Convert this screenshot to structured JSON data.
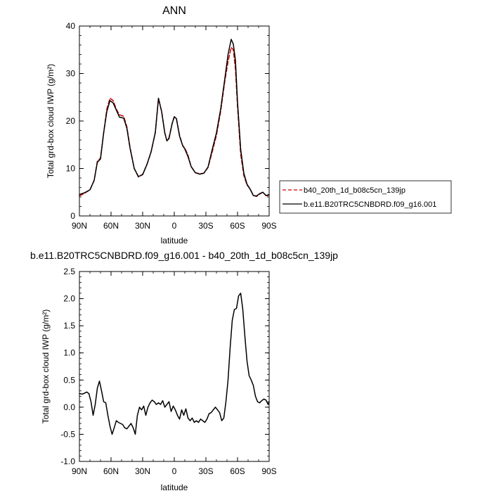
{
  "chart_data": [
    {
      "type": "line",
      "title": "ANN",
      "xlabel": "latitude",
      "ylabel": "Total grd-box cloud IWP (g/m²)",
      "xlim": [
        90,
        -90
      ],
      "ylim": [
        0,
        40
      ],
      "xticks": [
        90,
        60,
        30,
        0,
        -30,
        -60,
        -90
      ],
      "xtick_labels": [
        "90N",
        "60N",
        "30N",
        "0",
        "30S",
        "60S",
        "90S"
      ],
      "yticks": [
        0,
        10,
        20,
        30,
        40
      ],
      "ytick_labels": [
        "0",
        "10",
        "20",
        "30",
        "40"
      ],
      "legend_position": "right",
      "series": [
        {
          "name": "b40_20th_1d_b08c5cn_139jp",
          "color": "#cc0000",
          "dash": "dashed",
          "x": [
            90,
            85,
            80,
            76,
            73,
            70,
            67,
            64,
            61,
            58,
            55,
            52,
            48,
            45,
            42,
            38,
            34,
            30,
            26,
            22,
            18,
            15,
            12,
            9,
            7,
            5,
            2,
            0,
            -2,
            -5,
            -8,
            -10,
            -13,
            -16,
            -20,
            -24,
            -28,
            -32,
            -36,
            -40,
            -44,
            -48,
            -51,
            -54,
            -56,
            -58,
            -60,
            -63,
            -66,
            -69,
            -72,
            -75,
            -78,
            -81,
            -84,
            -87,
            -90
          ],
          "y": [
            4.2,
            4.8,
            5.5,
            7.5,
            11.5,
            12.2,
            17.5,
            22.5,
            24.8,
            24.3,
            22.5,
            21.3,
            21.0,
            18.8,
            14.5,
            10.0,
            8.2,
            8.8,
            10.8,
            13.5,
            17.5,
            24.7,
            22.0,
            17.5,
            15.8,
            16.5,
            19.5,
            20.8,
            20.6,
            17.0,
            14.8,
            14.3,
            12.8,
            10.4,
            9.1,
            8.9,
            9.0,
            10.2,
            13.5,
            17.0,
            22.0,
            28.5,
            32.5,
            35.5,
            35.0,
            31.0,
            23.0,
            13.0,
            8.5,
            6.5,
            5.7,
            4.3,
            4.1,
            4.6,
            5.0,
            4.3,
            4.2
          ]
        },
        {
          "name": "b.e11.B20TRC5CNBDRD.f09_g16.001",
          "color": "#000000",
          "dash": "solid",
          "x": [
            90,
            85,
            80,
            76,
            73,
            70,
            67,
            64,
            61,
            58,
            55,
            52,
            48,
            45,
            42,
            38,
            34,
            30,
            26,
            22,
            18,
            15,
            12,
            9,
            7,
            5,
            2,
            0,
            -2,
            -5,
            -8,
            -10,
            -13,
            -16,
            -20,
            -24,
            -28,
            -32,
            -36,
            -40,
            -44,
            -48,
            -51,
            -54,
            -56,
            -58,
            -60,
            -63,
            -66,
            -69,
            -72,
            -75,
            -78,
            -81,
            -84,
            -87,
            -90
          ],
          "y": [
            4.5,
            4.9,
            5.5,
            7.5,
            11.3,
            12.0,
            17.5,
            22.0,
            24.3,
            23.8,
            22.3,
            20.8,
            20.6,
            18.5,
            14.3,
            10.0,
            8.3,
            8.7,
            10.8,
            13.5,
            17.6,
            24.8,
            22.0,
            17.5,
            15.8,
            16.3,
            19.5,
            20.9,
            20.5,
            16.8,
            14.8,
            14.1,
            12.5,
            10.4,
            9.1,
            8.8,
            9.0,
            10.3,
            14.0,
            17.5,
            22.5,
            29.0,
            34.0,
            37.2,
            36.2,
            32.8,
            24.0,
            14.0,
            9.0,
            6.7,
            5.6,
            4.3,
            4.2,
            4.7,
            5.0,
            4.3,
            4.5
          ]
        }
      ]
    },
    {
      "type": "line",
      "title": "b.e11.B20TRC5CNBDRD.f09_g16.001 - b40_20th_1d_b08c5cn_139jp",
      "xlabel": "latitude",
      "ylabel": "Total grd-box cloud IWP (g/m²)",
      "xlim": [
        90,
        -90
      ],
      "ylim": [
        -1.0,
        2.5
      ],
      "xticks": [
        90,
        60,
        30,
        0,
        -30,
        -60,
        -90
      ],
      "xtick_labels": [
        "90N",
        "60N",
        "30N",
        "0",
        "30S",
        "60S",
        "90S"
      ],
      "yticks": [
        -1.0,
        -0.5,
        0.0,
        0.5,
        1.0,
        1.5,
        2.0,
        2.5
      ],
      "ytick_labels": [
        "-1.0",
        "-0.5",
        "0.0",
        "0.5",
        "1.0",
        "1.5",
        "2.0",
        "2.5"
      ],
      "series": [
        {
          "name": "",
          "color": "#000000",
          "dash": "solid",
          "x": [
            90,
            87,
            85,
            83,
            81,
            79,
            77,
            75,
            73,
            71,
            69,
            67,
            65,
            63,
            61,
            59,
            57,
            55,
            53,
            51,
            49,
            47,
            45,
            43,
            41,
            39,
            37,
            35,
            33,
            31,
            29,
            27,
            25,
            23,
            21,
            19,
            17,
            15,
            13,
            11,
            9,
            7,
            5,
            3,
            1,
            -1,
            -3,
            -5,
            -7,
            -9,
            -11,
            -13,
            -15,
            -17,
            -19,
            -21,
            -23,
            -25,
            -27,
            -29,
            -31,
            -33,
            -35,
            -37,
            -39,
            -41,
            -43,
            -45,
            -47,
            -49,
            -51,
            -53,
            -55,
            -57,
            -59,
            -61,
            -63,
            -65,
            -67,
            -69,
            -71,
            -73,
            -75,
            -77,
            -79,
            -81,
            -83,
            -85,
            -87,
            -89,
            -90
          ],
          "y": [
            0.25,
            0.24,
            0.26,
            0.28,
            0.25,
            0.1,
            -0.15,
            0.05,
            0.35,
            0.48,
            0.3,
            0.1,
            0.08,
            -0.15,
            -0.35,
            -0.5,
            -0.38,
            -0.25,
            -0.28,
            -0.3,
            -0.32,
            -0.38,
            -0.4,
            -0.35,
            -0.3,
            -0.38,
            -0.5,
            -0.15,
            0.0,
            -0.05,
            0.02,
            -0.15,
            0.0,
            0.08,
            0.13,
            0.1,
            0.05,
            0.08,
            0.05,
            0.12,
            0.0,
            0.05,
            0.1,
            -0.08,
            0.02,
            -0.05,
            -0.15,
            -0.22,
            -0.05,
            -0.15,
            -0.03,
            -0.2,
            -0.25,
            -0.2,
            -0.28,
            -0.25,
            -0.28,
            -0.22,
            -0.25,
            -0.28,
            -0.22,
            -0.12,
            -0.1,
            -0.05,
            0.0,
            -0.05,
            -0.1,
            -0.25,
            -0.2,
            0.1,
            0.5,
            1.1,
            1.6,
            1.8,
            1.82,
            2.05,
            2.1,
            1.8,
            1.3,
            0.85,
            0.58,
            0.5,
            0.4,
            0.2,
            0.1,
            0.08,
            0.12,
            0.15,
            0.13,
            0.05,
            0.1
          ]
        }
      ]
    }
  ]
}
